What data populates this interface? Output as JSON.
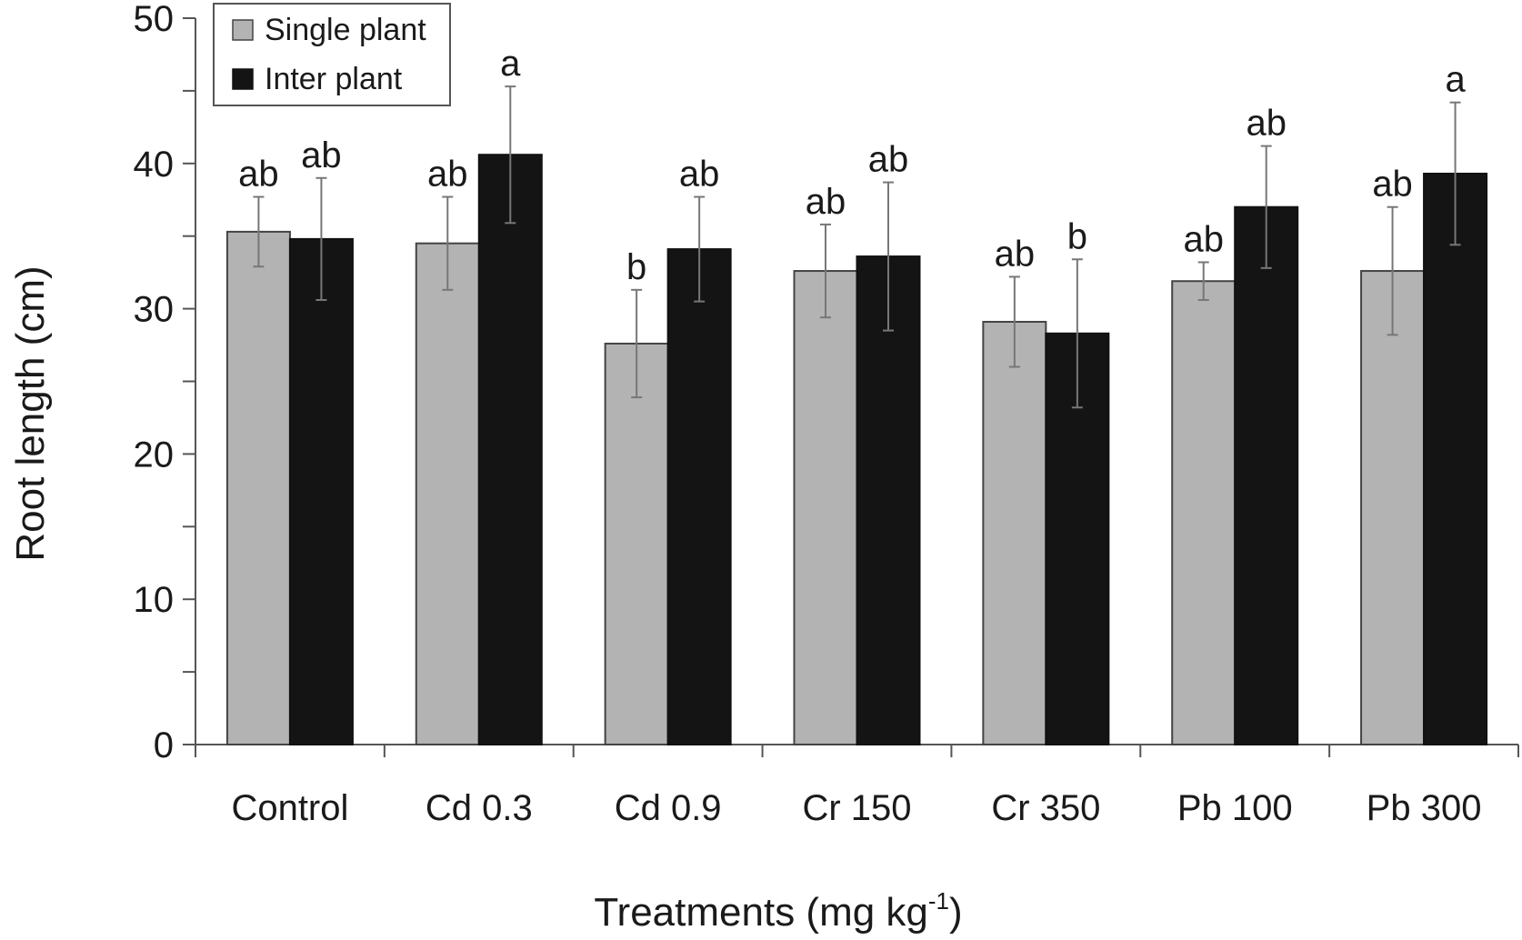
{
  "colors": {
    "single": "#b3b3b3",
    "inter": "#141414",
    "axis": "#555555",
    "error_bar": "#777777"
  },
  "chart_data": {
    "type": "bar",
    "xlabel_main": "Treatments (mg kg",
    "xlabel_sup": "-1",
    "xlabel_end": ")",
    "ylabel": "Root length (cm)",
    "ylim": [
      0,
      50
    ],
    "yticks": [
      "0",
      "10",
      "20",
      "30",
      "40",
      "50"
    ],
    "grid": false,
    "legend_position": "top-left",
    "categories": [
      "Control",
      "Cd 0.3",
      "Cd 0.9",
      "Cr 150",
      "Cr 350",
      "Pb 100",
      "Pb 300"
    ],
    "series": [
      {
        "name": "Single plant",
        "values": [
          35.3,
          34.5,
          27.6,
          32.6,
          29.1,
          31.9,
          32.6
        ],
        "error": [
          2.4,
          3.2,
          3.7,
          3.2,
          3.1,
          1.3,
          4.4
        ],
        "sig": [
          "ab",
          "ab",
          "b",
          "ab",
          "ab",
          "ab",
          "ab"
        ]
      },
      {
        "name": "Inter plant",
        "values": [
          34.8,
          40.6,
          34.1,
          33.6,
          28.3,
          37.0,
          39.3
        ],
        "error": [
          4.2,
          4.7,
          3.6,
          5.1,
          5.1,
          4.2,
          4.9
        ],
        "sig": [
          "ab",
          "a",
          "ab",
          "ab",
          "b",
          "ab",
          "a"
        ]
      }
    ]
  }
}
